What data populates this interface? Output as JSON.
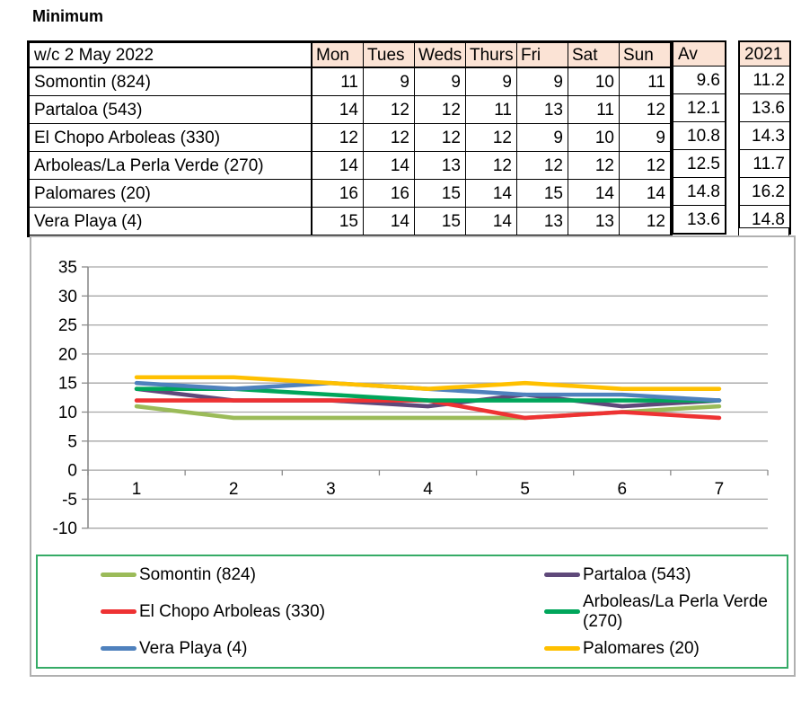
{
  "title": "Minimum",
  "table": {
    "week_label": "w/c 2 May 2022",
    "day_headers": [
      "Mon",
      "Tues",
      "Weds",
      "Thurs",
      "Fri",
      "Sat",
      "Sun"
    ],
    "rows": [
      {
        "name": "Somontin (824)",
        "values": [
          "11",
          "9",
          "9",
          "9",
          "9",
          "10",
          "11"
        ]
      },
      {
        "name": "Partaloa (543)",
        "values": [
          "14",
          "12",
          "12",
          "11",
          "13",
          "11",
          "12"
        ]
      },
      {
        "name": "El Chopo Arboleas (330)",
        "values": [
          "12",
          "12",
          "12",
          "12",
          "9",
          "10",
          "9"
        ]
      },
      {
        "name": "Arboleas/La Perla Verde (270)",
        "values": [
          "14",
          "14",
          "13",
          "12",
          "12",
          "12",
          "12"
        ]
      },
      {
        "name": "Palomares (20)",
        "values": [
          "16",
          "16",
          "15",
          "14",
          "15",
          "14",
          "14"
        ]
      },
      {
        "name": "Vera Playa (4)",
        "values": [
          "15",
          "14",
          "15",
          "14",
          "13",
          "13",
          "12"
        ]
      }
    ]
  },
  "av_table": {
    "header": "Av",
    "values": [
      "9.6",
      "12.1",
      "10.8",
      "12.5",
      "14.8",
      "13.6"
    ]
  },
  "year_table": {
    "header": "2021",
    "values": [
      "11.2",
      "13.6",
      "14.3",
      "11.7",
      "16.2",
      "14.8"
    ]
  },
  "chart_data": {
    "type": "line",
    "x": [
      1,
      2,
      3,
      4,
      5,
      6,
      7
    ],
    "xticklabels": [
      "1",
      "2",
      "3",
      "4",
      "5",
      "6",
      "7"
    ],
    "series": [
      {
        "name": "Somontin (824)",
        "color": "#9BBB59",
        "values": [
          11,
          9,
          9,
          9,
          9,
          10,
          11
        ]
      },
      {
        "name": "Partaloa (543)",
        "color": "#5F497A",
        "values": [
          14,
          12,
          12,
          11,
          13,
          11,
          12
        ]
      },
      {
        "name": "El Chopo Arboleas (330)",
        "color": "#EE3233",
        "values": [
          12,
          12,
          12,
          12,
          9,
          10,
          9
        ]
      },
      {
        "name": "Arboleas/La Perla Verde (270)",
        "color": "#00A65B",
        "values": [
          14,
          14,
          13,
          12,
          12,
          12,
          12
        ]
      },
      {
        "name": "Vera Playa (4)",
        "color": "#4F81BD",
        "values": [
          15,
          14,
          15,
          14,
          13,
          13,
          12
        ]
      },
      {
        "name": "Palomares (20)",
        "color": "#FFC000",
        "values": [
          16,
          16,
          15,
          14,
          15,
          14,
          14
        ]
      }
    ],
    "ylim": [
      -10,
      35
    ],
    "ytick_step": 5,
    "grid": true,
    "legend_position": "bottom"
  },
  "colors": {
    "header_fill": "#FBE3D5",
    "legend_border": "#35AB66",
    "gridline": "#A6A6A6",
    "axis": "#8A8A8A"
  }
}
